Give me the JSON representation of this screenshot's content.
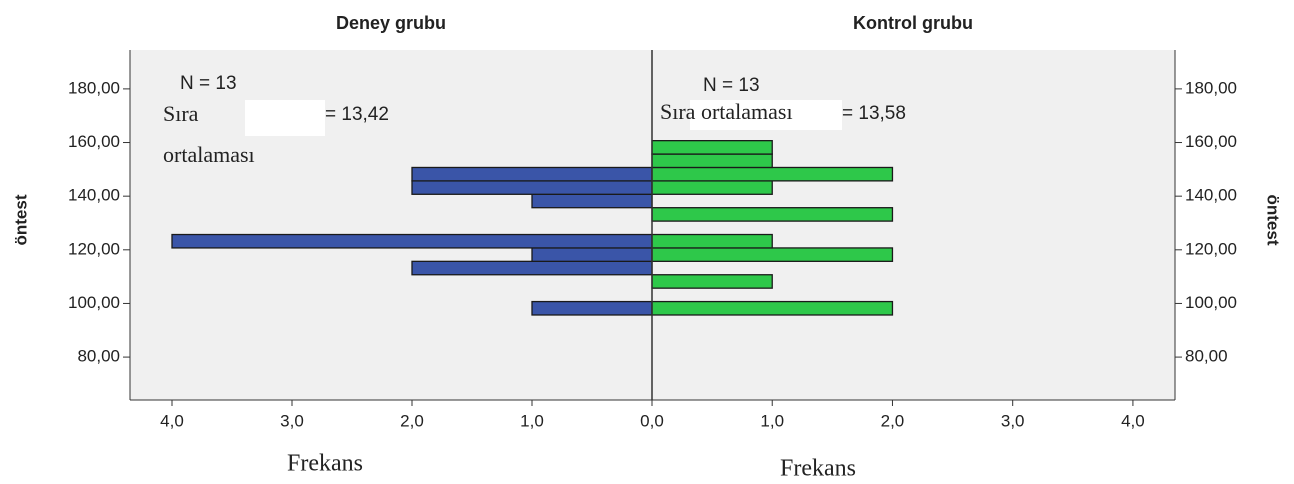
{
  "chart_data": [
    {
      "type": "histogram",
      "title": "Deney grubu",
      "ylabel": "öntest",
      "xlabel": "Frekans",
      "yaxis_side": "left",
      "annotations": [
        "N = 13",
        "Sıra",
        "ortalaması",
        "= 13,42"
      ],
      "bins": [
        95.7,
        100.7,
        105.7,
        110.7,
        115.7,
        120.7,
        125.7,
        130.7,
        135.7,
        140.7,
        145.7,
        150.7,
        155.7,
        160.7
      ],
      "values": [
        1,
        0,
        0,
        2,
        1,
        4,
        0,
        0,
        1,
        2,
        2,
        0,
        0
      ],
      "color": "#3a55a8",
      "xlim": [
        4.35,
        0
      ],
      "xticks": [
        {
          "value": 4,
          "label": "4,0"
        },
        {
          "value": 3,
          "label": "3,0"
        },
        {
          "value": 2,
          "label": "2,0"
        },
        {
          "value": 1,
          "label": "1,0"
        },
        {
          "value": 0,
          "label": "0,0"
        }
      ],
      "ylim": [
        64,
        194.5
      ],
      "yticks": [
        {
          "value": 80,
          "label": "80,00"
        },
        {
          "value": 100,
          "label": "100,00"
        },
        {
          "value": 120,
          "label": "120,00"
        },
        {
          "value": 140,
          "label": "140,00"
        },
        {
          "value": 160,
          "label": "160,00"
        },
        {
          "value": 180,
          "label": "180,00"
        }
      ]
    },
    {
      "type": "histogram",
      "title": "Kontrol grubu",
      "ylabel": "öntest",
      "xlabel": "Frekans",
      "yaxis_side": "right",
      "annotations": [
        "N = 13",
        "Sıra ortalaması",
        "= 13,58"
      ],
      "bins": [
        95.7,
        100.7,
        105.7,
        110.7,
        115.7,
        120.7,
        125.7,
        130.7,
        135.7,
        140.7,
        145.7,
        150.7,
        155.7,
        160.7
      ],
      "values": [
        2,
        0,
        1,
        0,
        2,
        1,
        0,
        2,
        0,
        1,
        2,
        1,
        1
      ],
      "color": "#2ec84a",
      "xlim": [
        0,
        4.35
      ],
      "xticks": [
        {
          "value": 1,
          "label": "1,0"
        },
        {
          "value": 2,
          "label": "2,0"
        },
        {
          "value": 3,
          "label": "3,0"
        },
        {
          "value": 4,
          "label": "4,0"
        }
      ],
      "ylim": [
        64,
        194.5
      ],
      "yticks": [
        {
          "value": 80,
          "label": "80,00"
        },
        {
          "value": 100,
          "label": "100,00"
        },
        {
          "value": 120,
          "label": "120,00"
        },
        {
          "value": 140,
          "label": "140,00"
        },
        {
          "value": 160,
          "label": "160,00"
        },
        {
          "value": 180,
          "label": "180,00"
        }
      ]
    }
  ]
}
